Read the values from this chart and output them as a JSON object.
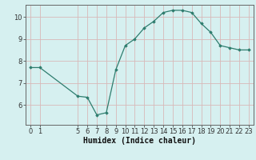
{
  "x": [
    0,
    1,
    5,
    6,
    7,
    8,
    9,
    10,
    11,
    12,
    13,
    14,
    15,
    16,
    17,
    18,
    19,
    20,
    21,
    22,
    23
  ],
  "y": [
    7.7,
    7.7,
    6.4,
    6.35,
    5.55,
    5.65,
    7.6,
    8.7,
    9.0,
    9.5,
    9.8,
    10.2,
    10.3,
    10.3,
    10.2,
    9.7,
    9.3,
    8.7,
    8.6,
    8.5,
    8.5
  ],
  "line_color": "#2e7d6e",
  "marker": "D",
  "marker_size": 1.8,
  "bg_color": "#d6f0f0",
  "grid_color": "#d8b8b8",
  "xlabel": "Humidex (Indice chaleur)",
  "xlim": [
    -0.5,
    23.5
  ],
  "ylim": [
    5.1,
    10.55
  ],
  "xticks": [
    0,
    1,
    5,
    6,
    7,
    8,
    9,
    10,
    11,
    12,
    13,
    14,
    15,
    16,
    17,
    18,
    19,
    20,
    21,
    22,
    23
  ],
  "yticks": [
    6,
    7,
    8,
    9,
    10
  ],
  "xlabel_fontsize": 7.0,
  "tick_fontsize": 6.0,
  "line_width": 0.9,
  "spine_color": "#666666"
}
